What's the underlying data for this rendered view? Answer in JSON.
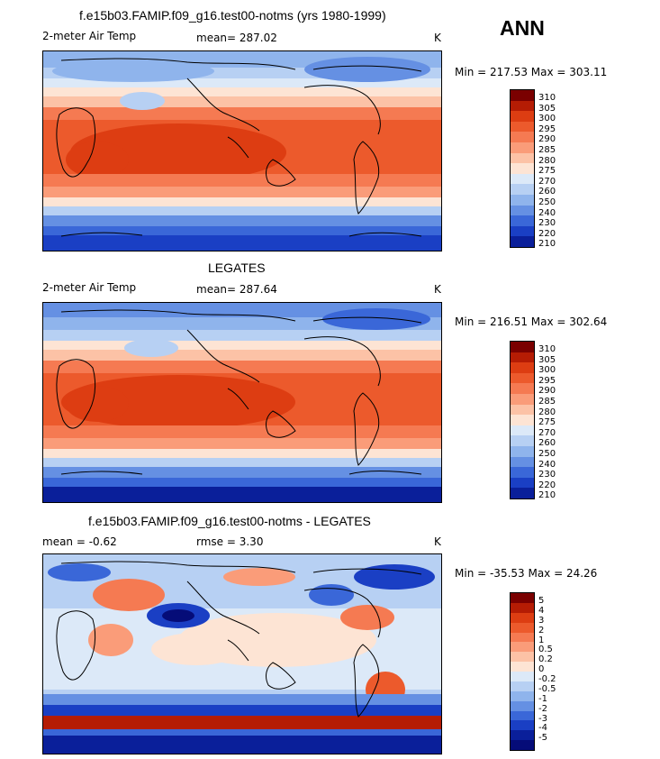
{
  "season": "ANN",
  "panels": [
    {
      "title": "f.e15b03.FAMIP.f09_g16.test00-notms (yrs 1980-1999)",
      "variable": "2-meter Air Temp",
      "stat": "mean=  287.02",
      "units": "K",
      "minmax": "Min = 217.53 Max = 303.11",
      "colorbar_labels": [
        "310",
        "305",
        "300",
        "295",
        "290",
        "285",
        "280",
        "275",
        "270",
        "260",
        "250",
        "240",
        "230",
        "220",
        "210"
      ]
    },
    {
      "title": "LEGATES",
      "variable": "2-meter Air Temp",
      "stat": "mean=  287.64",
      "units": "K",
      "minmax": "Min = 216.51 Max = 302.64",
      "colorbar_labels": [
        "310",
        "305",
        "300",
        "295",
        "290",
        "285",
        "280",
        "275",
        "270",
        "260",
        "250",
        "240",
        "230",
        "220",
        "210"
      ]
    },
    {
      "title": "f.e15b03.FAMIP.f09_g16.test00-notms - LEGATES",
      "mean": "mean =   -0.62",
      "rmse": "rmse =    3.30",
      "units": "K",
      "minmax": "Min = -35.53 Max =  24.26",
      "colorbar_labels": [
        "5",
        "4",
        "3",
        "2",
        "1",
        "0.5",
        "0.2",
        "0",
        "-0.2",
        "-0.5",
        "-1",
        "-2",
        "-3",
        "-4",
        "-5"
      ]
    }
  ],
  "colors": {
    "abs_scale": [
      "#7a0000",
      "#b51c04",
      "#dd3d12",
      "#ec5a2c",
      "#f57a52",
      "#fa9c79",
      "#fcc2a6",
      "#fde4d4",
      "#dce9f8",
      "#b7d0f3",
      "#8fb4ec",
      "#6590e3",
      "#3a67d8",
      "#1a3fc4",
      "#0a1f9a",
      "#050c78"
    ],
    "diff_scale": [
      "#7a0000",
      "#b51c04",
      "#dd3d12",
      "#ec5a2c",
      "#f57a52",
      "#fa9c79",
      "#fcc2a6",
      "#fde4d4",
      "#dce9f8",
      "#b7d0f3",
      "#8fb4ec",
      "#6590e3",
      "#3a67d8",
      "#1a3fc4",
      "#0a1f9a",
      "#050c78"
    ]
  }
}
